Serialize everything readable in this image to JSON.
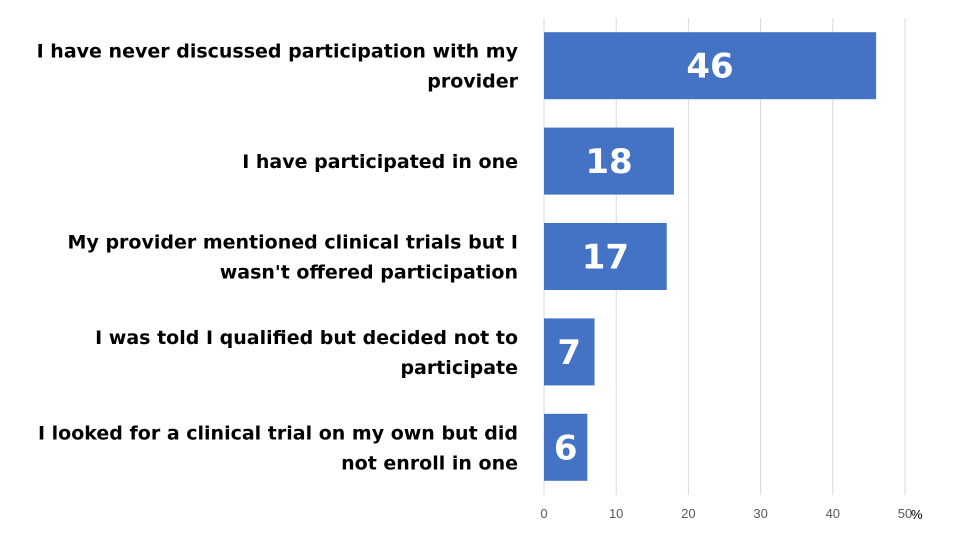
{
  "chart_data": {
    "type": "bar",
    "orientation": "horizontal",
    "categories": [
      [
        "I have never discussed participation with my",
        "provider"
      ],
      [
        "I have participated in one"
      ],
      [
        "My provider mentioned clinical trials but I",
        "wasn't offered participation"
      ],
      [
        "I was told I qualified but decided not to",
        "participate"
      ],
      [
        "I looked for a clinical trial on my own but did",
        "not enroll in one"
      ]
    ],
    "values": [
      46,
      18,
      17,
      7,
      6
    ],
    "data_labels": [
      "46",
      "18",
      "17",
      "7",
      "6"
    ],
    "xlim": [
      0,
      50
    ],
    "x_ticks": [
      "0",
      "10",
      "20",
      "30",
      "40",
      "50"
    ],
    "x_unit": "%",
    "grid": true,
    "bar_color": "#4472C4",
    "title": "",
    "xlabel": "",
    "ylabel": ""
  }
}
